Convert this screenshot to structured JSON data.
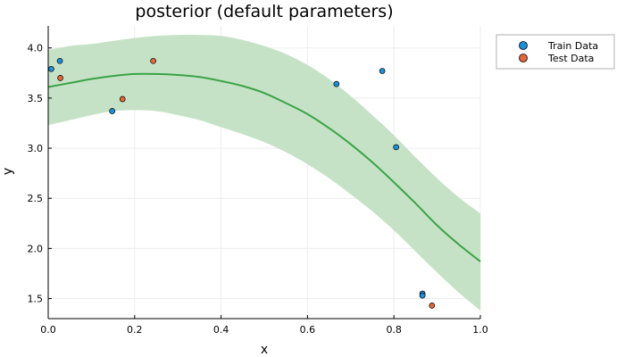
{
  "chart_data": {
    "type": "scatter",
    "title": "posterior (default parameters)",
    "xlabel": "x",
    "ylabel": "y",
    "xlim": [
      0,
      1
    ],
    "ylim": [
      1.3,
      4.22
    ],
    "grid": true,
    "legend_position": "top-right-outside",
    "x_ticks": [
      0.0,
      0.2,
      0.4,
      0.6,
      0.8,
      1.0
    ],
    "x_tick_labels": [
      "0.0",
      "0.2",
      "0.4",
      "0.6",
      "0.8",
      "1.0"
    ],
    "y_ticks": [
      1.5,
      2.0,
      2.5,
      3.0,
      3.5,
      4.0
    ],
    "y_tick_labels": [
      "1.5",
      "2.0",
      "2.5",
      "3.0",
      "3.5",
      "4.0"
    ],
    "legend": [
      "Train Data",
      "Test Data"
    ],
    "colors": {
      "train": "#1f8fd6",
      "test": "#e0663c",
      "mean": "#3aa345",
      "band": "#c6e2c6",
      "grid": "#ececec"
    },
    "series": [
      {
        "name": "Train Data",
        "x": [
          0.007,
          0.027,
          0.148,
          0.667,
          0.773,
          0.805,
          0.866,
          0.866
        ],
        "y": [
          3.79,
          3.87,
          3.37,
          3.64,
          3.77,
          3.01,
          1.55,
          1.53
        ]
      },
      {
        "name": "Test Data",
        "x": [
          0.028,
          0.172,
          0.243,
          0.888
        ],
        "y": [
          3.7,
          3.49,
          3.87,
          1.43
        ]
      }
    ],
    "posterior": {
      "x": [
        0.0,
        0.05,
        0.1,
        0.15,
        0.2,
        0.25,
        0.3,
        0.35,
        0.4,
        0.45,
        0.5,
        0.55,
        0.6,
        0.65,
        0.7,
        0.75,
        0.8,
        0.85,
        0.9,
        0.95,
        1.0
      ],
      "mean": [
        3.61,
        3.65,
        3.69,
        3.72,
        3.74,
        3.74,
        3.73,
        3.71,
        3.67,
        3.62,
        3.55,
        3.45,
        3.34,
        3.2,
        3.04,
        2.86,
        2.66,
        2.45,
        2.23,
        2.04,
        1.87
      ],
      "upper": [
        3.98,
        4.02,
        4.04,
        4.07,
        4.1,
        4.12,
        4.13,
        4.13,
        4.12,
        4.08,
        4.02,
        3.94,
        3.83,
        3.69,
        3.52,
        3.33,
        3.13,
        2.91,
        2.7,
        2.51,
        2.35
      ],
      "lower": [
        3.23,
        3.28,
        3.33,
        3.37,
        3.38,
        3.37,
        3.33,
        3.28,
        3.21,
        3.14,
        3.06,
        2.96,
        2.84,
        2.7,
        2.54,
        2.37,
        2.18,
        1.97,
        1.76,
        1.56,
        1.38
      ]
    }
  }
}
